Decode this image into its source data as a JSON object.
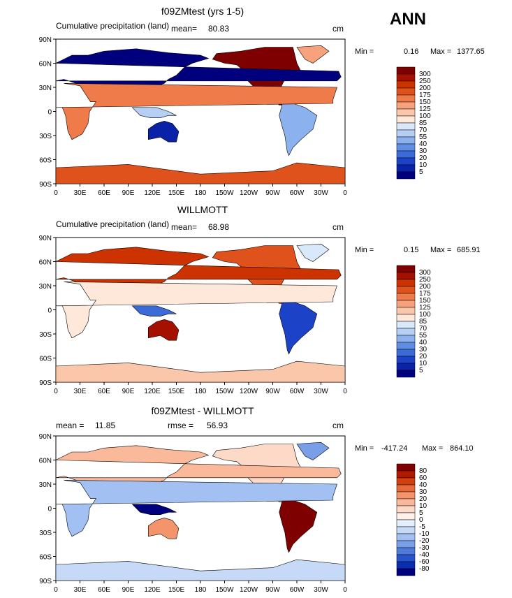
{
  "season": "ANN",
  "panels": [
    {
      "title": "f09ZMtest (yrs 1-5)",
      "subtitle": "Cumulative precipitation (land)",
      "stat_left_label": "mean=",
      "stat_left_value": "80.83",
      "stat_mid_label": "",
      "stat_mid_value": "",
      "units": "cm",
      "min_label": "Min =",
      "min_value": "0.16",
      "max_label": "Max =",
      "max_value": "1377.65",
      "colorbar": [
        "300",
        "250",
        "200",
        "175",
        "150",
        "125",
        "100",
        "85",
        "70",
        "55",
        "40",
        "30",
        "20",
        "10",
        "5"
      ]
    },
    {
      "title": "WILLMOTT",
      "subtitle": "Cumulative precipitation (land)",
      "stat_left_label": "mean=",
      "stat_left_value": "68.98",
      "stat_mid_label": "",
      "stat_mid_value": "",
      "units": "cm",
      "min_label": "Min =",
      "min_value": "0.15",
      "max_label": "Max =",
      "max_value": "685.91",
      "colorbar": [
        "300",
        "250",
        "200",
        "175",
        "150",
        "125",
        "100",
        "85",
        "70",
        "55",
        "40",
        "30",
        "20",
        "10",
        "5"
      ]
    },
    {
      "title": "f09ZMtest - WILLMOTT",
      "subtitle": "",
      "stat_left_label": "mean =",
      "stat_left_value": "11.85",
      "stat_mid_label": "rmse =",
      "stat_mid_value": "56.93",
      "units": "cm",
      "min_label": "Min =",
      "min_value": "-417.24",
      "max_label": "Max =",
      "max_value": "864.10",
      "colorbar": [
        "80",
        "60",
        "40",
        "30",
        "20",
        "10",
        "5",
        "0",
        "-5",
        "-10",
        "-20",
        "-30",
        "-40",
        "-60",
        "-80"
      ]
    }
  ],
  "lat_labels": [
    "90N",
    "60N",
    "30N",
    "0",
    "30S",
    "60S",
    "90S"
  ],
  "lon_labels": [
    "0",
    "30E",
    "60E",
    "90E",
    "120E",
    "150E",
    "180",
    "150W",
    "120W",
    "90W",
    "60W",
    "30W",
    "0"
  ],
  "colors": {
    "precip_scale": [
      "#7f0000",
      "#a51000",
      "#cc3300",
      "#e0521b",
      "#ef7a4a",
      "#f7a27c",
      "#fbc7ab",
      "#fde8da",
      "#d9e8fb",
      "#b5cff5",
      "#8bb2ee",
      "#5f8fe4",
      "#3a6bd8",
      "#1c42c8",
      "#0a22a8",
      "#00007f"
    ],
    "diff_scale": [
      "#7f0000",
      "#b01a00",
      "#d23f10",
      "#e86a3c",
      "#f4946b",
      "#fab99a",
      "#fddac8",
      "#fff1e8",
      "#e5eefc",
      "#c6d9f7",
      "#a2c0f1",
      "#789fe8",
      "#4f7cdb",
      "#2754cc",
      "#0a2db0",
      "#00007f"
    ]
  }
}
